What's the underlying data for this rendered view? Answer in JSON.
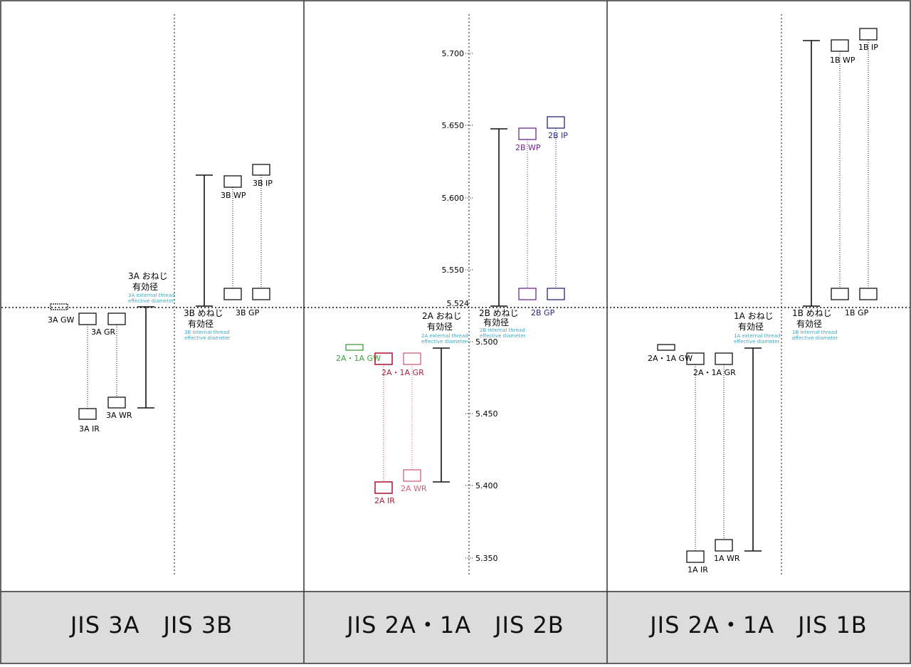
{
  "panels": [
    {
      "id": "p1",
      "footer": "JIS 3A　JIS 3B",
      "labels": {
        "gw": "3A GW",
        "gr": "3A GR",
        "ir": "3A IR",
        "wr": "3A WR",
        "ext_title_1": "3A おねじ",
        "ext_title_2": "有効径",
        "ext_note_1": "3A external thread",
        "ext_note_2": "effective diameter",
        "int_title_1": "3B めねじ",
        "int_title_2": "有効径",
        "int_note_1": "3B internal thread",
        "int_note_2": "effective diameter",
        "wp": "3B WP",
        "ip": "3B IP",
        "gp": "3B GP"
      }
    },
    {
      "id": "p2",
      "footer": "JIS 2A・1A　JIS 2B",
      "labels": {
        "gw": "2A・1A GW",
        "gr": "2A・1A GR",
        "ir": "2A IR",
        "wr": "2A WR",
        "ext_title_1": "2A おねじ",
        "ext_title_2": "有効径",
        "ext_note_1": "2A external thread",
        "ext_note_2": "effective diameter",
        "int_title_1": "2B めねじ",
        "int_title_2": "有効径",
        "int_note_1": "2B internal thread",
        "int_note_2": "effective diameter",
        "wp": "2B WP",
        "ip": "2B IP",
        "gp": "2B GP"
      }
    },
    {
      "id": "p3",
      "footer": "JIS 2A・1A　JIS 1B",
      "labels": {
        "gw": "2A・1A GW",
        "gr": "2A・1A GR",
        "ir": "1A IR",
        "wr": "1A WR",
        "ext_title_1": "1A おねじ",
        "ext_title_2": "有効径",
        "ext_note_1": "1A external thread",
        "ext_note_2": "effective diameter",
        "int_title_1": "1B めねじ",
        "int_title_2": "有効径",
        "int_note_1": "1B internal thread",
        "int_note_2": "effective diameter",
        "wp": "1B WP",
        "ip": "1B IP",
        "gp": "1B GP"
      }
    }
  ],
  "axis": {
    "ticks": [
      "5.700",
      "5.650",
      "5.600",
      "5.550",
      "5.524",
      "5.500",
      "5.450",
      "5.400",
      "5.350"
    ]
  },
  "colors": {
    "line": "#111111",
    "gw_2a": "#3aa23a",
    "gr_2a": "#b0203a",
    "wr_2a": "#d0607a",
    "wp_2b": "#6a2a8a",
    "ip_2b": "#262678",
    "gp_2b": "#5a3aa0",
    "note": "#3fa7bf",
    "footer_bg": "#dcdcdc"
  }
}
